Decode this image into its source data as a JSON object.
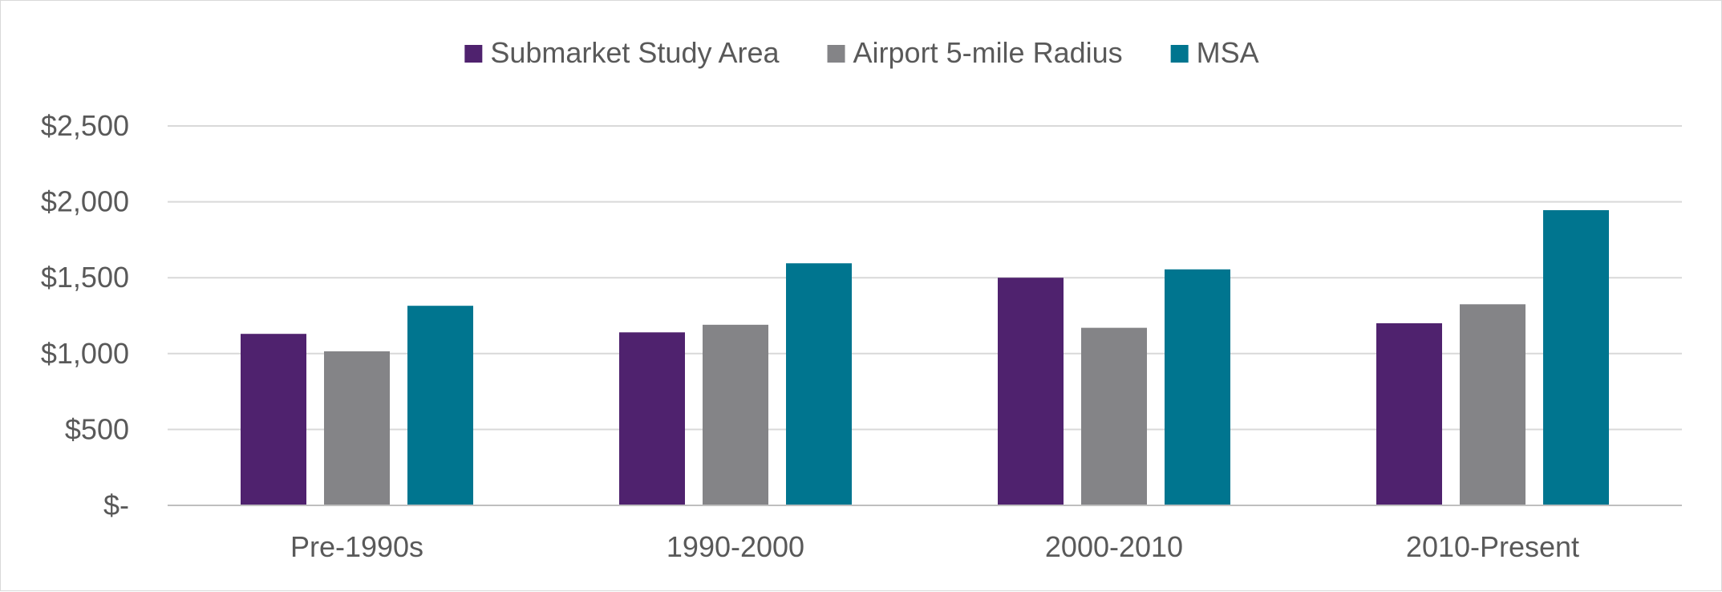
{
  "chart_data": {
    "type": "bar",
    "title": "",
    "xlabel": "",
    "ylabel": "",
    "categories": [
      "Pre-1990s",
      "1990-2000",
      "2000-2010",
      "2010-Present"
    ],
    "series": [
      {
        "name": "Submarket Study Area",
        "color": "#4f226e",
        "values": [
          1130,
          1140,
          1500,
          1200
        ]
      },
      {
        "name": "Airport 5-mile Radius",
        "color": "#848487",
        "values": [
          1015,
          1190,
          1170,
          1325
        ]
      },
      {
        "name": "MSA",
        "color": "#00758f",
        "values": [
          1315,
          1595,
          1555,
          1945
        ]
      }
    ],
    "ylim": [
      0,
      2500
    ],
    "yticks": [
      0,
      500,
      1000,
      1500,
      2000,
      2500
    ],
    "ytick_labels": [
      "$-",
      "$500",
      "$1,000",
      "$1,500",
      "$2,000",
      "$2,500"
    ],
    "grid": true,
    "legend_position": "top-center",
    "gridline_color": "#d9d9d9",
    "axis_color": "#bfbfbf"
  }
}
